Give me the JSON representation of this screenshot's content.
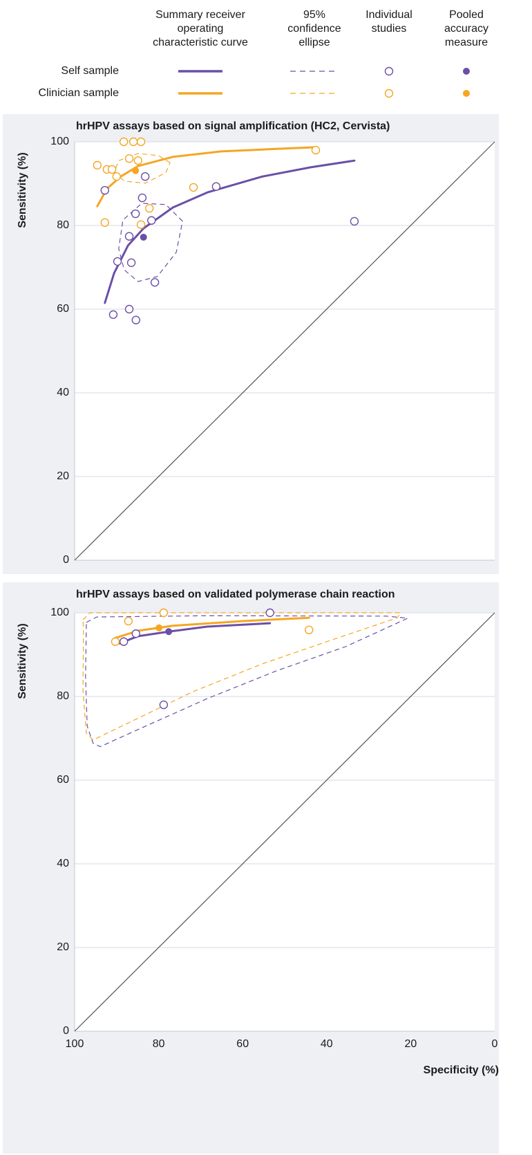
{
  "legend": {
    "columns": [
      [
        "Summary receiver",
        "operating",
        "characteristic curve"
      ],
      [
        "95%",
        "confidence",
        "ellipse"
      ],
      [
        "Individual",
        "studies"
      ],
      [
        "Pooled",
        "accuracy",
        "measure"
      ]
    ],
    "rows": [
      "Self sample",
      "Clinician sample"
    ]
  },
  "chart_data": [
    {
      "type": "sroc",
      "title": "hrHPV assays based on signal amplification (HC2, Cervista)",
      "ylabel": "Sensitivity (%)",
      "xlim": [
        100,
        0
      ],
      "ylim": [
        0,
        100
      ],
      "yticks": [
        0,
        20,
        40,
        60,
        80,
        100
      ],
      "grid": true,
      "reference_line": true,
      "series": [
        {
          "color": "#6b4fa6",
          "studies": {
            "x": [
              92.8,
              83.2,
              83.9,
              85.5,
              81.7,
              87.0,
              89.8,
              86.5,
              80.9,
              90.8,
              87.0,
              85.4,
              66.3,
              33.4
            ],
            "y": [
              88.4,
              91.7,
              86.6,
              82.8,
              81.2,
              77.4,
              71.4,
              71.1,
              66.4,
              58.7,
              60.0,
              57.4,
              89.3,
              81.0
            ]
          },
          "pooled": {
            "x": 83.6,
            "y": 77.2
          },
          "curve": {
            "x": [
              92.8,
              90.6,
              87.3,
              83.6,
              76.6,
              68.4,
              55.3,
              43.8,
              33.4
            ],
            "y": [
              61.5,
              68.6,
              75.2,
              79.3,
              84.3,
              87.9,
              91.7,
              93.9,
              95.5
            ]
          },
          "ellipse": {
            "x": [
              74.3,
              78.3,
              84.0,
              88.5,
              89.5,
              88.2,
              84.9,
              80.3,
              75.8
            ],
            "y": [
              81.0,
              85.0,
              85.3,
              81.3,
              74.4,
              69.4,
              66.6,
              67.8,
              73.6
            ]
          }
        },
        {
          "color": "#f5a623",
          "studies": {
            "x": [
              94.6,
              92.3,
              91.1,
              90.0,
              88.3,
              86.0,
              84.2,
              87.0,
              84.9,
              92.8,
              82.2,
              84.2,
              71.7,
              42.6
            ],
            "y": [
              94.4,
              93.4,
              93.4,
              91.7,
              100,
              100,
              100,
              96.0,
              95.5,
              80.7,
              84.1,
              80.2,
              89.1,
              98.0
            ]
          },
          "pooled": {
            "x": 85.5,
            "y": 93.1
          },
          "curve": {
            "x": [
              94.6,
              92.3,
              89.0,
              84.9,
              76.6,
              65.1,
              52.0,
              42.6
            ],
            "y": [
              84.6,
              88.8,
              91.7,
              94.2,
              96.4,
              97.7,
              98.3,
              98.7
            ]
          },
          "ellipse": {
            "x": [
              77.3,
              80.0,
              84.9,
              89.5,
              90.5,
              88.2,
              83.2,
              78.3
            ],
            "y": [
              95.0,
              96.7,
              97.2,
              95.5,
              92.9,
              90.6,
              90.1,
              92.6
            ]
          }
        }
      ]
    },
    {
      "type": "sroc",
      "title": "hrHPV assays based on validated polymerase chain reaction",
      "ylabel": "Sensitivity (%)",
      "xlabel": "Specificity (%)",
      "xlim": [
        100,
        0
      ],
      "ylim": [
        0,
        100
      ],
      "xticks": [
        100,
        80,
        60,
        40,
        20,
        0
      ],
      "yticks": [
        0,
        20,
        40,
        60,
        80,
        100
      ],
      "grid": true,
      "reference_line": true,
      "series": [
        {
          "color": "#6b4fa6",
          "studies": {
            "x": [
              88.3,
              85.4,
              53.5,
              78.8
            ],
            "y": [
              93.1,
              95.0,
              100,
              78.0
            ]
          },
          "pooled": {
            "x": 77.6,
            "y": 95.5
          },
          "curve": {
            "x": [
              89.3,
              84.9,
              77.6,
              68.4,
              53.5
            ],
            "y": [
              92.7,
              94.4,
              95.5,
              96.7,
              97.5
            ]
          },
          "ellipse": {
            "x": [
              97.2,
              94.7,
              68.4,
              25.7,
              20.7,
              35.5,
              52.0,
              68.4,
              84.9,
              93.9,
              95.6,
              97.0,
              97.4
            ],
            "y": [
              97.7,
              99.0,
              99.3,
              99.2,
              98.7,
              91.9,
              86.1,
              79.5,
              72.1,
              68.0,
              68.8,
              72.9,
              84.5
            ]
          }
        },
        {
          "color": "#f5a623",
          "studies": {
            "x": [
              90.3,
              87.2,
              78.8,
              44.2
            ],
            "y": [
              93.1,
              98.0,
              100,
              95.9
            ]
          },
          "pooled": {
            "x": 79.9,
            "y": 96.4
          },
          "curve": {
            "x": [
              90.3,
              84.9,
              76.6,
              60.2,
              44.2
            ],
            "y": [
              94.0,
              95.7,
              96.9,
              98.0,
              98.8
            ]
          },
          "ellipse": {
            "x": [
              98.0,
              96.4,
              68.4,
              22.4,
              23.2,
              38.8,
              55.3,
              71.7,
              88.2,
              95.6,
              97.2,
              98.0,
              97.9
            ],
            "y": [
              98.3,
              100,
              100,
              100,
              98.8,
              93.5,
              87.8,
              81.2,
              73.2,
              69.6,
              71.2,
              81.2,
              96.0
            ]
          }
        }
      ]
    }
  ]
}
